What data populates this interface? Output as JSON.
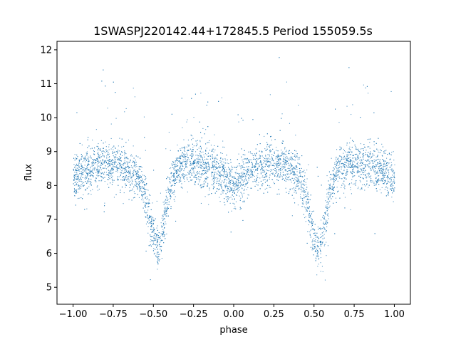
{
  "chart_data": {
    "type": "scatter",
    "title": "1SWASPJ220142.44+172845.5 Period 155059.5s",
    "xlabel": "phase",
    "ylabel": "flux",
    "xlim": [
      -1.1,
      1.1
    ],
    "ylim": [
      4.5,
      12.25
    ],
    "xticks": [
      -1.0,
      -0.75,
      -0.5,
      -0.25,
      0.0,
      0.25,
      0.5,
      0.75,
      1.0
    ],
    "xtick_labels": [
      "−1.00",
      "−0.75",
      "−0.50",
      "−0.25",
      "0.00",
      "0.25",
      "0.50",
      "0.75",
      "1.00"
    ],
    "yticks": [
      5,
      6,
      7,
      8,
      9,
      10,
      11,
      12
    ],
    "ytick_labels": [
      "5",
      "6",
      "7",
      "8",
      "9",
      "10",
      "11",
      "12"
    ],
    "grid": false,
    "marker_color": "#1f77b4",
    "series": [
      {
        "envelope": {
          "phase": [
            -1.0,
            -0.9,
            -0.8,
            -0.7,
            -0.6,
            -0.55,
            -0.5,
            -0.48,
            -0.45,
            -0.4,
            -0.35,
            -0.3,
            -0.2,
            -0.1,
            0.0,
            0.1,
            0.2,
            0.3,
            0.4,
            0.45,
            0.5,
            0.52,
            0.55,
            0.6,
            0.65,
            0.7,
            0.8,
            0.9,
            1.0
          ],
          "flux": [
            8.25,
            8.5,
            8.65,
            8.6,
            8.3,
            7.7,
            6.4,
            6.1,
            6.5,
            7.9,
            8.55,
            8.7,
            8.6,
            8.4,
            8.0,
            8.4,
            8.6,
            8.7,
            8.3,
            7.7,
            6.4,
            6.1,
            6.5,
            7.9,
            8.5,
            8.65,
            8.6,
            8.5,
            8.2
          ]
        }
      }
    ]
  }
}
